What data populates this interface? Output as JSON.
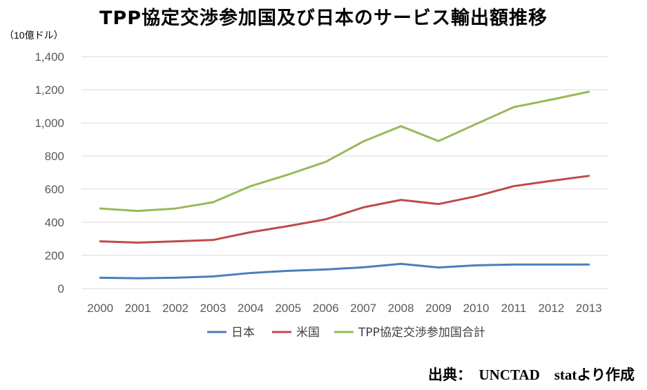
{
  "title": "TPP協定交渉参加国及び日本のサービス輸出額推移",
  "unit_label": "（10億ドル）",
  "source": "出典：　UNCTAD　statより作成",
  "chart_data": {
    "type": "line",
    "title": "TPP協定交渉参加国及び日本のサービス輸出額推移",
    "ylabel": "（10億ドル）",
    "xlabel": "",
    "ylim": [
      0,
      1400
    ],
    "yticks": [
      0,
      200,
      400,
      600,
      800,
      1000,
      1200,
      1400
    ],
    "ytick_labels": [
      "0",
      "200",
      "400",
      "600",
      "800",
      "1,000",
      "1,200",
      "1,400"
    ],
    "categories": [
      "2000",
      "2001",
      "2002",
      "2003",
      "2004",
      "2005",
      "2006",
      "2007",
      "2008",
      "2009",
      "2010",
      "2011",
      "2012",
      "2013"
    ],
    "grid": true,
    "legend_position": "bottom",
    "series": [
      {
        "name": "日本",
        "color": "#4a7ebb",
        "values": [
          65,
          62,
          65,
          73,
          94,
          107,
          115,
          128,
          149,
          127,
          140,
          145,
          145,
          145
        ]
      },
      {
        "name": "米国",
        "color": "#be4b48",
        "values": [
          285,
          277,
          285,
          293,
          340,
          377,
          418,
          490,
          535,
          510,
          557,
          618,
          650,
          680
        ]
      },
      {
        "name": "TPP協定交渉参加国合計",
        "color": "#98b954",
        "values": [
          483,
          468,
          483,
          521,
          618,
          688,
          765,
          888,
          980,
          890,
          993,
          1095,
          1140,
          1188
        ]
      }
    ]
  }
}
